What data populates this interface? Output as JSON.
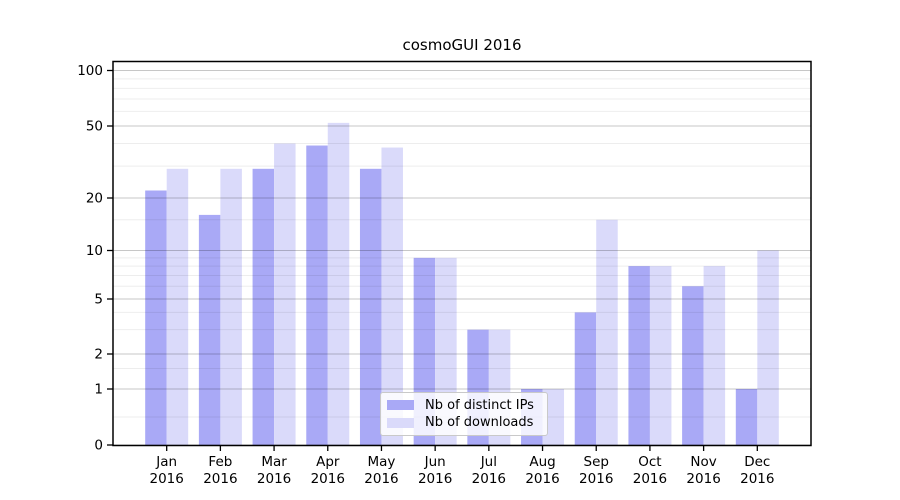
{
  "chart_data": {
    "type": "bar",
    "title": "cosmoGUI 2016",
    "categories": [
      "Jan",
      "Feb",
      "Mar",
      "Apr",
      "May",
      "Jun",
      "Jul",
      "Aug",
      "Sep",
      "Oct",
      "Nov",
      "Dec"
    ],
    "category_sublabel": "2016",
    "series": [
      {
        "name": "Nb of distinct IPs",
        "color": "#a9a9f6",
        "values": [
          22,
          16,
          29,
          39,
          29,
          9,
          3,
          1,
          4,
          8,
          6,
          1
        ]
      },
      {
        "name": "Nb of downloads",
        "color": "#dadafa",
        "values": [
          29,
          29,
          40,
          52,
          38,
          9,
          3,
          1,
          15,
          8,
          8,
          10
        ]
      }
    ],
    "xlabel": "",
    "ylabel": "",
    "yscale": "log-like (linear below 1)",
    "y_ticks": [
      0,
      1,
      2,
      5,
      10,
      20,
      50,
      100
    ],
    "y_minor_ticks": [
      0.5,
      1.5,
      3,
      4,
      6,
      7,
      8,
      9,
      15,
      30,
      40,
      60,
      70,
      80,
      90
    ],
    "ylim": [
      0,
      112
    ],
    "grid": true,
    "legend_position": "lower center",
    "colors": {
      "axes": "#000000",
      "major_grid": "rgba(0,0,0,0.22)",
      "minor_grid": "rgba(0,0,0,0.07)",
      "tick_label": "#000000"
    }
  }
}
